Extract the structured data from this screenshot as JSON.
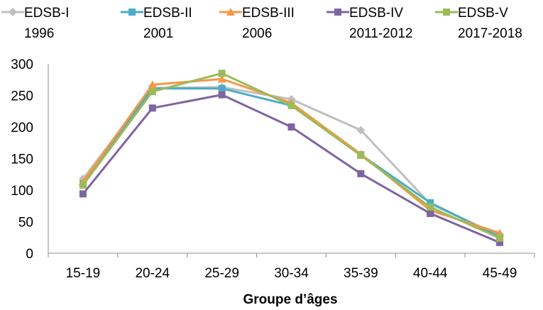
{
  "chart_data": {
    "type": "line",
    "categories": [
      "15-19",
      "20-24",
      "25-29",
      "30-34",
      "35-39",
      "40-44",
      "45-49"
    ],
    "xlabel": "Groupe d’âges",
    "ylabel": "",
    "ylim": [
      0,
      300
    ],
    "yticks": [
      "0",
      "50",
      "100",
      "150",
      "200",
      "250",
      "300"
    ],
    "grid": false,
    "legend_position": "top",
    "series": [
      {
        "name_line1": "EDSB-I",
        "name_line2": "1996",
        "color": "#bfbfbf",
        "marker": "diamond",
        "values": [
          118,
          262,
          263,
          244,
          195,
          78,
          28
        ]
      },
      {
        "name_line1": "EDSB-II",
        "name_line2": "2001",
        "color": "#4bacc6",
        "marker": "square",
        "values": [
          110,
          261,
          261,
          234,
          156,
          80,
          26
        ]
      },
      {
        "name_line1": "EDSB-III",
        "name_line2": "2006",
        "color": "#f79646",
        "marker": "triangle",
        "values": [
          113,
          267,
          276,
          238,
          157,
          68,
          32
        ]
      },
      {
        "name_line1": "EDSB-IV",
        "name_line2": "2011-2012",
        "color": "#8064a2",
        "marker": "square",
        "values": [
          94,
          230,
          251,
          200,
          126,
          63,
          17
        ]
      },
      {
        "name_line1": "EDSB-V",
        "name_line2": "2017-2018",
        "color": "#9bbb59",
        "marker": "square",
        "values": [
          108,
          256,
          285,
          234,
          155,
          73,
          24
        ]
      }
    ]
  }
}
